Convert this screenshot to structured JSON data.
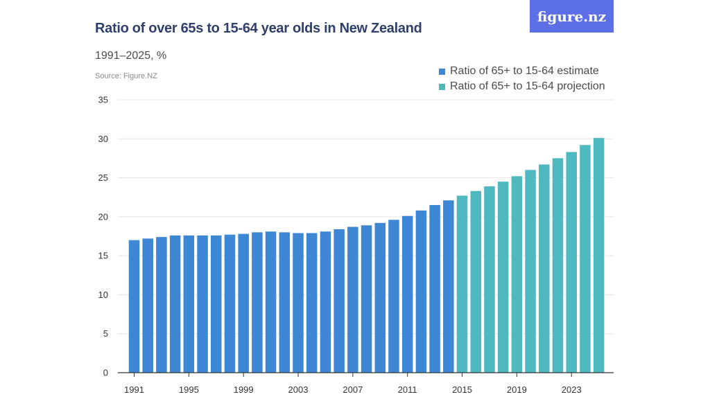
{
  "header": {
    "title": "Ratio of over 65s to 15-64 year olds in New Zealand",
    "subtitle": "1991–2025, %",
    "source": "Source: Figure.NZ",
    "logo_text": "figure.nz"
  },
  "colors": {
    "estimate": "#3d87d4",
    "projection": "#4fb9c0",
    "grid": "#e3e3e3",
    "axis": "#333333",
    "logo_bg": "#5c6fe6"
  },
  "chart_data": {
    "type": "bar",
    "title": "Ratio of over 65s to 15-64 year olds in New Zealand",
    "subtitle": "1991–2025, %",
    "xlabel": "",
    "ylabel": "",
    "ylim": [
      0,
      35
    ],
    "yticks": [
      0,
      5,
      10,
      15,
      20,
      25,
      30,
      35
    ],
    "xtick_labels": [
      "1991",
      "1995",
      "1999",
      "2003",
      "2007",
      "2011",
      "2015",
      "2019",
      "2023"
    ],
    "legend_position": "top-right",
    "grid": true,
    "series": [
      {
        "name": "Ratio of 65+ to 15-64 estimate",
        "years": [
          1991,
          1992,
          1993,
          1994,
          1995,
          1996,
          1997,
          1998,
          1999,
          2000,
          2001,
          2002,
          2003,
          2004,
          2005,
          2006,
          2007,
          2008,
          2009,
          2010,
          2011,
          2012,
          2013,
          2014
        ],
        "values": [
          17.0,
          17.2,
          17.4,
          17.6,
          17.6,
          17.6,
          17.6,
          17.7,
          17.8,
          18.0,
          18.1,
          18.0,
          17.9,
          17.9,
          18.1,
          18.4,
          18.7,
          18.9,
          19.2,
          19.6,
          20.1,
          20.8,
          21.5,
          22.1
        ]
      },
      {
        "name": "Ratio of 65+ to 15-64 projection",
        "years": [
          2015,
          2016,
          2017,
          2018,
          2019,
          2020,
          2021,
          2022,
          2023,
          2024,
          2025
        ],
        "values": [
          22.7,
          23.3,
          23.9,
          24.5,
          25.2,
          26.0,
          26.7,
          27.5,
          28.3,
          29.2,
          30.1
        ]
      }
    ]
  }
}
